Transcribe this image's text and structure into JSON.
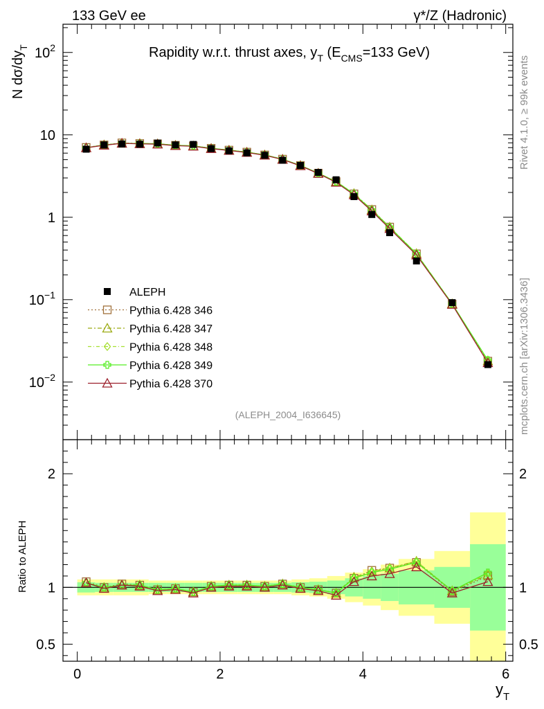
{
  "header": {
    "left": "133 GeV ee",
    "right": "γ*/Z (Hadronic)"
  },
  "side_labels": {
    "rivet": "Rivet 4.1.0, ≥ 99k events",
    "mcplots": "mcplots.cern.ch [arXiv:1306.3436]"
  },
  "chart_data": {
    "type": "line",
    "title": "Rapidity w.r.t. thrust axes, y_T (E_CMS=133 GeV)",
    "title_parts": {
      "main": "Rapidity w.r.t. thrust axes, y",
      "sub1": "T",
      "mid": " (E",
      "sub2": "CMS",
      "end": "=133 GeV)"
    },
    "analysis_id": "(ALEPH_2004_I636645)",
    "ylabel": {
      "main": "N  dσ/dy",
      "sub": "T"
    },
    "xlabel": {
      "main": "y",
      "sub": "T"
    },
    "ratio_ylabel": "Ratio to ALEPH",
    "xlim": [
      -0.2,
      6.1
    ],
    "ylim": [
      0.002,
      220
    ],
    "yscale": "log",
    "ratio_ylim": [
      0.35,
      2.3
    ],
    "x_ticks": [
      "0",
      "2",
      "4",
      "6"
    ],
    "y_ticks_main": [
      {
        "value": 100,
        "base": "10",
        "exp": "2"
      },
      {
        "value": 10,
        "base": "10",
        "exp": ""
      },
      {
        "value": 1,
        "base": "1",
        "exp": ""
      },
      {
        "value": 0.1,
        "base": "10",
        "exp": "−1"
      },
      {
        "value": 0.01,
        "base": "10",
        "exp": "−2"
      }
    ],
    "y_ticks_ratio": [
      "0.5",
      "1",
      "2"
    ],
    "x": [
      0.125,
      0.375,
      0.625,
      0.875,
      1.125,
      1.375,
      1.625,
      1.875,
      2.125,
      2.375,
      2.625,
      2.875,
      3.125,
      3.375,
      3.625,
      3.875,
      4.125,
      4.375,
      4.75,
      5.25,
      5.75
    ],
    "x_edges": [
      0.0,
      0.25,
      0.5,
      0.75,
      1.0,
      1.25,
      1.5,
      1.75,
      2.0,
      2.25,
      2.5,
      2.75,
      3.0,
      3.25,
      3.5,
      3.75,
      4.0,
      4.25,
      4.5,
      5.0,
      5.5,
      6.0
    ],
    "data": {
      "name": "ALEPH",
      "values": [
        6.7,
        7.55,
        7.75,
        7.7,
        7.95,
        7.55,
        7.65,
        6.8,
        6.4,
        6.05,
        5.65,
        4.92,
        4.25,
        3.5,
        2.85,
        1.78,
        1.08,
        0.65,
        0.295,
        0.092,
        0.0163
      ]
    },
    "band_inner": [
      0.045,
      0.04,
      0.04,
      0.04,
      0.04,
      0.04,
      0.04,
      0.04,
      0.04,
      0.04,
      0.04,
      0.04,
      0.045,
      0.05,
      0.06,
      0.08,
      0.1,
      0.12,
      0.15,
      0.18,
      0.38
    ],
    "band_outer": [
      0.07,
      0.07,
      0.07,
      0.07,
      0.06,
      0.06,
      0.06,
      0.06,
      0.06,
      0.06,
      0.06,
      0.06,
      0.07,
      0.08,
      0.1,
      0.13,
      0.16,
      0.2,
      0.25,
      0.32,
      0.66
    ],
    "series": [
      {
        "name": "Pythia 6.428 346",
        "color": "#a0703a",
        "marker": "square",
        "dash": "2,3",
        "ratio": [
          1.05,
          1.0,
          1.03,
          1.02,
          0.98,
          0.99,
          0.96,
          1.01,
          1.02,
          1.02,
          1.01,
          1.03,
          1.0,
          0.98,
          0.95,
          1.08,
          1.15,
          1.17,
          1.22,
          0.96,
          1.1
        ]
      },
      {
        "name": "Pythia 6.428 347",
        "color": "#9aaa10",
        "marker": "triangle",
        "dash": "6,3,2,3",
        "ratio": [
          1.04,
          1.0,
          1.02,
          1.02,
          0.98,
          0.99,
          0.96,
          1.01,
          1.02,
          1.02,
          1.01,
          1.03,
          1.0,
          0.98,
          0.95,
          1.09,
          1.14,
          1.17,
          1.23,
          0.97,
          1.11
        ]
      },
      {
        "name": "Pythia 6.428 348",
        "color": "#a6e030",
        "marker": "diamond",
        "dash": "5,3,1,3",
        "ratio": [
          1.04,
          1.0,
          1.02,
          1.02,
          0.98,
          0.99,
          0.96,
          1.01,
          1.02,
          1.02,
          1.01,
          1.03,
          1.0,
          0.98,
          0.95,
          1.08,
          1.14,
          1.17,
          1.23,
          0.97,
          1.12
        ]
      },
      {
        "name": "Pythia 6.428 349",
        "color": "#55ee22",
        "marker": "cross",
        "dash": "",
        "ratio": [
          1.04,
          1.0,
          1.02,
          1.02,
          0.98,
          0.99,
          0.96,
          1.01,
          1.02,
          1.02,
          1.01,
          1.03,
          1.0,
          0.98,
          0.95,
          1.08,
          1.13,
          1.16,
          1.22,
          0.97,
          1.13
        ]
      },
      {
        "name": "Pythia 6.428 370",
        "color": "#9c1f2a",
        "marker": "triangle-open",
        "dash": "",
        "ratio": [
          1.04,
          0.99,
          1.02,
          1.01,
          0.97,
          0.98,
          0.95,
          1.0,
          1.01,
          1.01,
          1.0,
          1.02,
          0.99,
          0.97,
          0.93,
          1.05,
          1.1,
          1.12,
          1.18,
          0.95,
          1.05
        ]
      }
    ],
    "legend_position": "lower-left"
  }
}
